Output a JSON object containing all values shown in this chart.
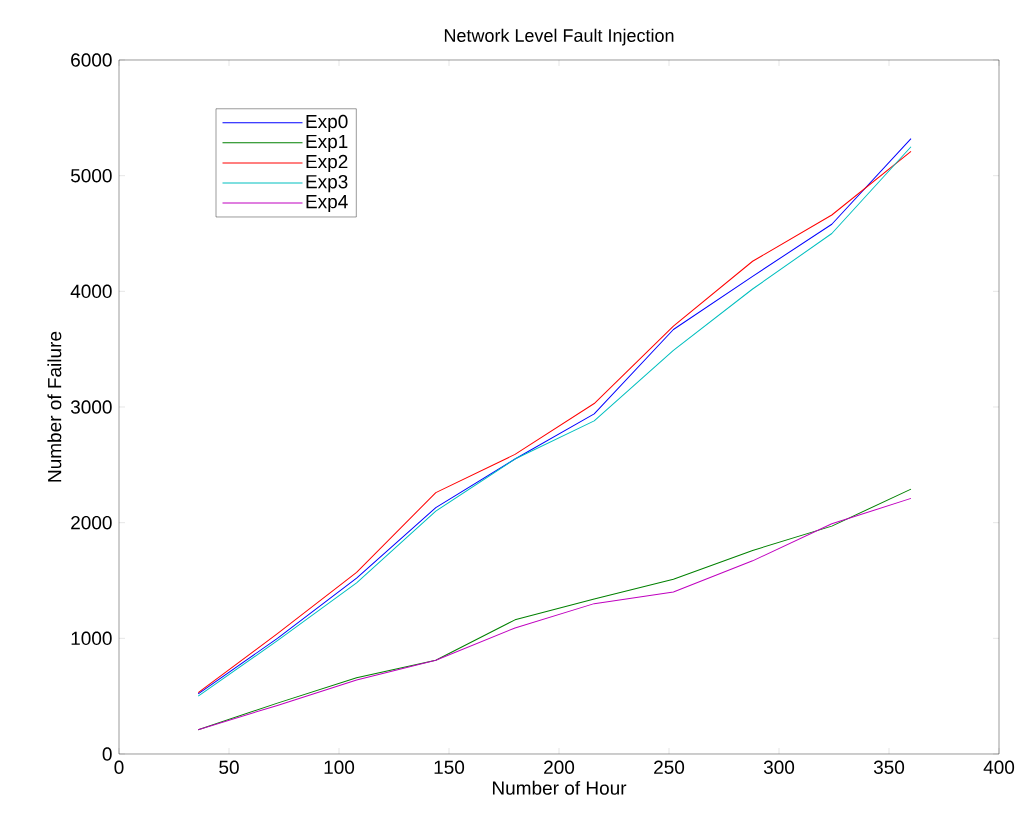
{
  "chart_data": {
    "type": "line",
    "title": "Network Level Fault Injection",
    "xlabel": "Number of Hour",
    "ylabel": "Number of Failure",
    "x": [
      36,
      72,
      108,
      144,
      180,
      216,
      252,
      288,
      324,
      360
    ],
    "series": [
      {
        "name": "Exp0",
        "color": "#0000ff",
        "values": [
          520,
          1000,
          1520,
          2130,
          2550,
          2940,
          3670,
          4130,
          4580,
          5320
        ]
      },
      {
        "name": "Exp1",
        "color": "#008000",
        "values": [
          210,
          440,
          660,
          810,
          1160,
          1340,
          1510,
          1760,
          1970,
          2290
        ]
      },
      {
        "name": "Exp2",
        "color": "#ff0000",
        "values": [
          530,
          1040,
          1570,
          2260,
          2590,
          3030,
          3700,
          4260,
          4660,
          5210
        ]
      },
      {
        "name": "Exp3",
        "color": "#00bfbf",
        "values": [
          500,
          980,
          1480,
          2100,
          2550,
          2880,
          3490,
          4020,
          4500,
          5250
        ]
      },
      {
        "name": "Exp4",
        "color": "#bf00bf",
        "values": [
          210,
          420,
          640,
          810,
          1090,
          1300,
          1400,
          1670,
          1990,
          2210
        ]
      }
    ],
    "xlim": [
      0,
      400
    ],
    "xticks": [
      0,
      50,
      100,
      150,
      200,
      250,
      300,
      350,
      400
    ],
    "ylim": [
      0,
      6000
    ],
    "yticks": [
      0,
      1000,
      2000,
      3000,
      4000,
      5000,
      6000
    ],
    "legend": "top left",
    "grid": false,
    "marker": "none",
    "line_style": "solid"
  }
}
